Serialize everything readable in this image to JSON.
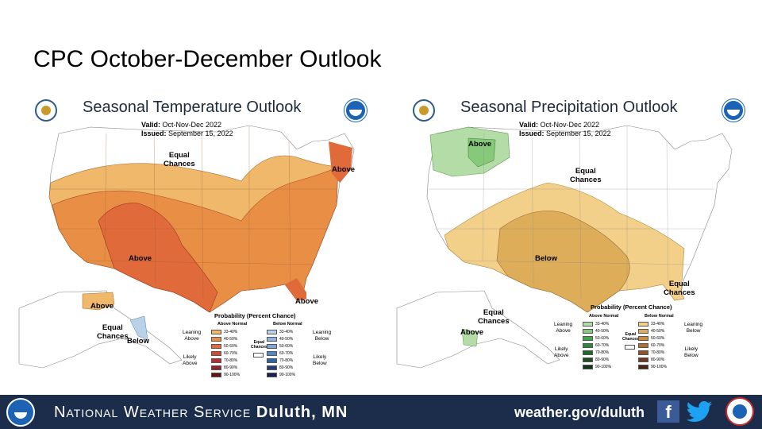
{
  "slide": {
    "title": "CPC October-December Outlook"
  },
  "temperature": {
    "title": "Seasonal Temperature Outlook",
    "valid_label": "Valid:",
    "valid_value": "Oct-Nov-Dec 2022",
    "issued_label": "Issued:",
    "issued_value": "September 15, 2022",
    "labels": {
      "equal": [
        "Equal",
        "Chances"
      ],
      "above_ne": "Above",
      "above_sw": "Above",
      "above_fl": "Above",
      "above_ak": "Above",
      "equal_ak": [
        "Equal",
        "Chances"
      ],
      "below_ak": "Below"
    },
    "legend": {
      "title": "Probability (Percent Chance)",
      "left_header": "Above Normal",
      "right_header": "Below Normal",
      "left_leaning": [
        "Leaning",
        "Above"
      ],
      "left_likely": [
        "Likely",
        "Above"
      ],
      "right_leaning": [
        "Leaning",
        "Below"
      ],
      "right_likely": [
        "Likely",
        "Below"
      ],
      "equal": [
        "Equal",
        "Chances"
      ],
      "ranges": [
        "33-40%",
        "40-50%",
        "50-60%",
        "60-70%",
        "70-80%",
        "80-90%",
        "90-100%"
      ],
      "left_colors": [
        "#f0b86a",
        "#e88f45",
        "#e06a3a",
        "#d14a32",
        "#b33030",
        "#8e2424",
        "#5e1616"
      ],
      "right_colors": [
        "#b9d2ea",
        "#8bb7de",
        "#7fa7cf",
        "#4e8ac2",
        "#2e62a3",
        "#243d7a",
        "#1c1f52"
      ]
    }
  },
  "precipitation": {
    "title": "Seasonal Precipitation Outlook",
    "valid_label": "Valid:",
    "valid_value": "Oct-Nov-Dec 2022",
    "issued_label": "Issued:",
    "issued_value": "September 15, 2022",
    "labels": {
      "above_nw": "Above",
      "equal": [
        "Equal",
        "Chances"
      ],
      "below": "Below",
      "equal_se": [
        "Equal",
        "Chances"
      ],
      "equal_ak": [
        "Equal",
        "Chances"
      ],
      "above_ak": "Above"
    },
    "legend": {
      "title": "Probability (Percent Chance)",
      "left_header": "Above Normal",
      "right_header": "Below Normal",
      "left_leaning": [
        "Leaning",
        "Above"
      ],
      "left_likely": [
        "Likely",
        "Above"
      ],
      "right_leaning": [
        "Leaning",
        "Below"
      ],
      "right_likely": [
        "Likely",
        "Below"
      ],
      "equal": [
        "Equal",
        "Chances"
      ],
      "ranges": [
        "33-40%",
        "40-50%",
        "50-60%",
        "60-70%",
        "70-80%",
        "80-90%",
        "90-100%"
      ],
      "left_colors": [
        "#b3dca6",
        "#86c97a",
        "#3fa64a",
        "#2a8a3a",
        "#1e6a2c",
        "#1a4f22",
        "#12361a"
      ],
      "right_colors": [
        "#f2d08a",
        "#ddad5a",
        "#c98e3e",
        "#b07030",
        "#8f5426",
        "#6e3c1c",
        "#4a2612"
      ]
    }
  },
  "colors": {
    "above_lean": "#f0b86a",
    "above_40": "#e88f45",
    "above_50": "#e06a3a",
    "precip_above": "#b3dca6",
    "precip_above_40": "#86c97a",
    "precip_below_lean": "#f2d08a",
    "precip_below_40": "#ddad5a",
    "ak_below": "#b9d2ea",
    "footer_bg": "#1b2d4a"
  },
  "footer": {
    "org_main": "National Weather Service",
    "org_office": "Duluth, MN",
    "url": "weather.gov/duluth",
    "facebook_icon": "f"
  }
}
